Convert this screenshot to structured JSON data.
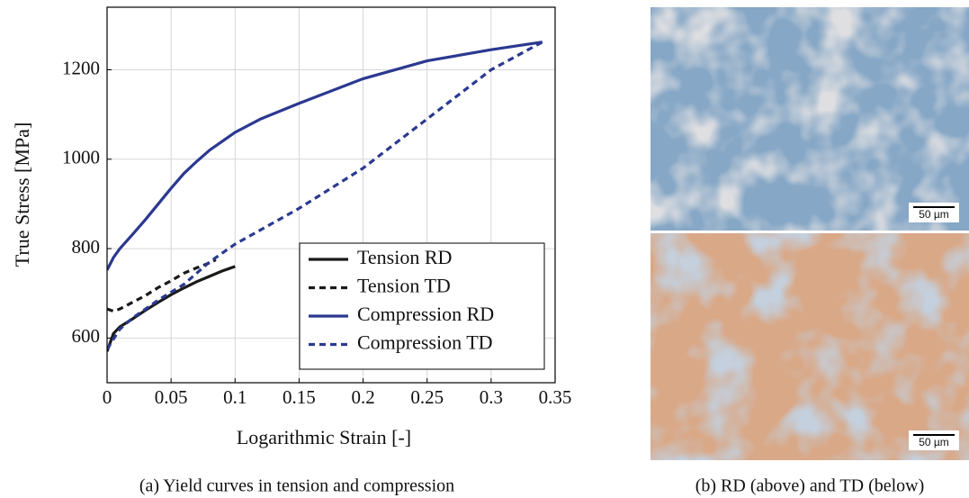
{
  "chart_data": {
    "type": "line",
    "xlabel": "Logarithmic Strain [-]",
    "ylabel": "True Stress [MPa]",
    "xlim": [
      0,
      0.35
    ],
    "ylim": [
      500,
      1340
    ],
    "xticks": [
      0,
      0.05,
      0.1,
      0.15,
      0.2,
      0.25,
      0.3,
      0.35
    ],
    "yticks": [
      600,
      800,
      1000,
      1200
    ],
    "grid": true,
    "legend": "lower right",
    "series": [
      {
        "name": "Tension RD",
        "color": "#1a1a1a",
        "dashed": false,
        "x": [
          0,
          0.005,
          0.01,
          0.02,
          0.03,
          0.04,
          0.05,
          0.06,
          0.07,
          0.08,
          0.09,
          0.1
        ],
        "values": [
          570,
          610,
          625,
          643,
          662,
          680,
          697,
          712,
          726,
          738,
          750,
          760
        ]
      },
      {
        "name": "Tension TD",
        "color": "#1a1a1a",
        "dashed": true,
        "x": [
          0,
          0.005,
          0.01,
          0.02,
          0.03,
          0.04,
          0.05,
          0.06,
          0.07,
          0.08,
          0.085
        ],
        "values": [
          665,
          660,
          665,
          680,
          695,
          713,
          728,
          745,
          757,
          768,
          775
        ]
      },
      {
        "name": "Compression RD",
        "color": "#2b3990",
        "dashed": false,
        "x": [
          0,
          0.005,
          0.01,
          0.02,
          0.03,
          0.04,
          0.05,
          0.06,
          0.07,
          0.08,
          0.1,
          0.12,
          0.15,
          0.2,
          0.25,
          0.3,
          0.34
        ],
        "values": [
          752,
          780,
          800,
          832,
          865,
          900,
          935,
          968,
          995,
          1020,
          1060,
          1090,
          1125,
          1180,
          1220,
          1245,
          1262
        ]
      },
      {
        "name": "Compression TD",
        "color": "#2b3990",
        "dashed": true,
        "x": [
          0,
          0.01,
          0.02,
          0.04,
          0.06,
          0.08,
          0.1,
          0.15,
          0.2,
          0.25,
          0.3,
          0.34
        ],
        "values": [
          575,
          620,
          645,
          685,
          720,
          770,
          810,
          890,
          980,
          1090,
          1200,
          1262
        ]
      }
    ]
  },
  "captions": [
    "(a) Yield curves in tension and compression",
    "(b) RD (above) and TD (below)"
  ],
  "micrographs": [
    {
      "scale_bar": "50 µm"
    },
    {
      "scale_bar": "50 µm"
    }
  ]
}
